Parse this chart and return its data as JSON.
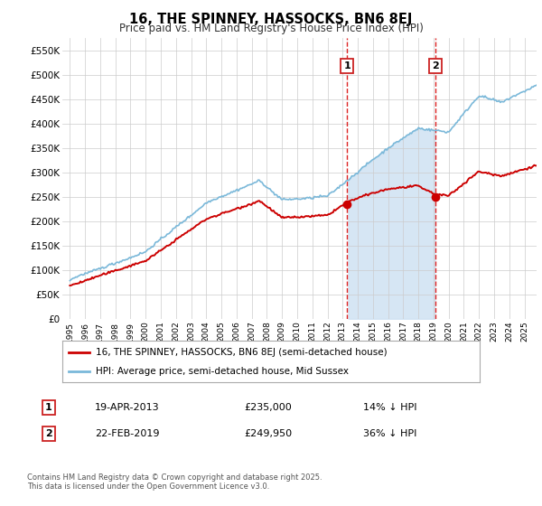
{
  "title": "16, THE SPINNEY, HASSOCKS, BN6 8EJ",
  "subtitle": "Price paid vs. HM Land Registry's House Price Index (HPI)",
  "legend_line1": "16, THE SPINNEY, HASSOCKS, BN6 8EJ (semi-detached house)",
  "legend_line2": "HPI: Average price, semi-detached house, Mid Sussex",
  "footnote": "Contains HM Land Registry data © Crown copyright and database right 2025.\nThis data is licensed under the Open Government Licence v3.0.",
  "annotation1_label": "1",
  "annotation1_date": "19-APR-2013",
  "annotation1_price": "£235,000",
  "annotation1_hpi": "14% ↓ HPI",
  "annotation2_label": "2",
  "annotation2_date": "22-FEB-2019",
  "annotation2_price": "£249,950",
  "annotation2_hpi": "36% ↓ HPI",
  "sale1_year": 2013.3,
  "sale1_price": 235000,
  "sale2_year": 2019.15,
  "sale2_price": 249950,
  "hpi_color": "#7ab8d9",
  "price_color": "#cc0000",
  "background_color": "#ffffff",
  "plot_bg_color": "#ffffff",
  "shade_color": "#cfe2f3",
  "grid_color": "#cccccc",
  "ylim_min": 0,
  "ylim_max": 575000,
  "yticks": [
    0,
    50000,
    100000,
    150000,
    200000,
    250000,
    300000,
    350000,
    400000,
    450000,
    500000,
    550000
  ],
  "ytick_labels": [
    "£0",
    "£50K",
    "£100K",
    "£150K",
    "£200K",
    "£250K",
    "£300K",
    "£350K",
    "£400K",
    "£450K",
    "£500K",
    "£550K"
  ],
  "xlim_min": 1994.5,
  "xlim_max": 2025.8,
  "xticks": [
    1995,
    1996,
    1997,
    1998,
    1999,
    2000,
    2001,
    2002,
    2003,
    2004,
    2005,
    2006,
    2007,
    2008,
    2009,
    2010,
    2011,
    2012,
    2013,
    2014,
    2015,
    2016,
    2017,
    2018,
    2019,
    2020,
    2021,
    2022,
    2023,
    2024,
    2025
  ]
}
